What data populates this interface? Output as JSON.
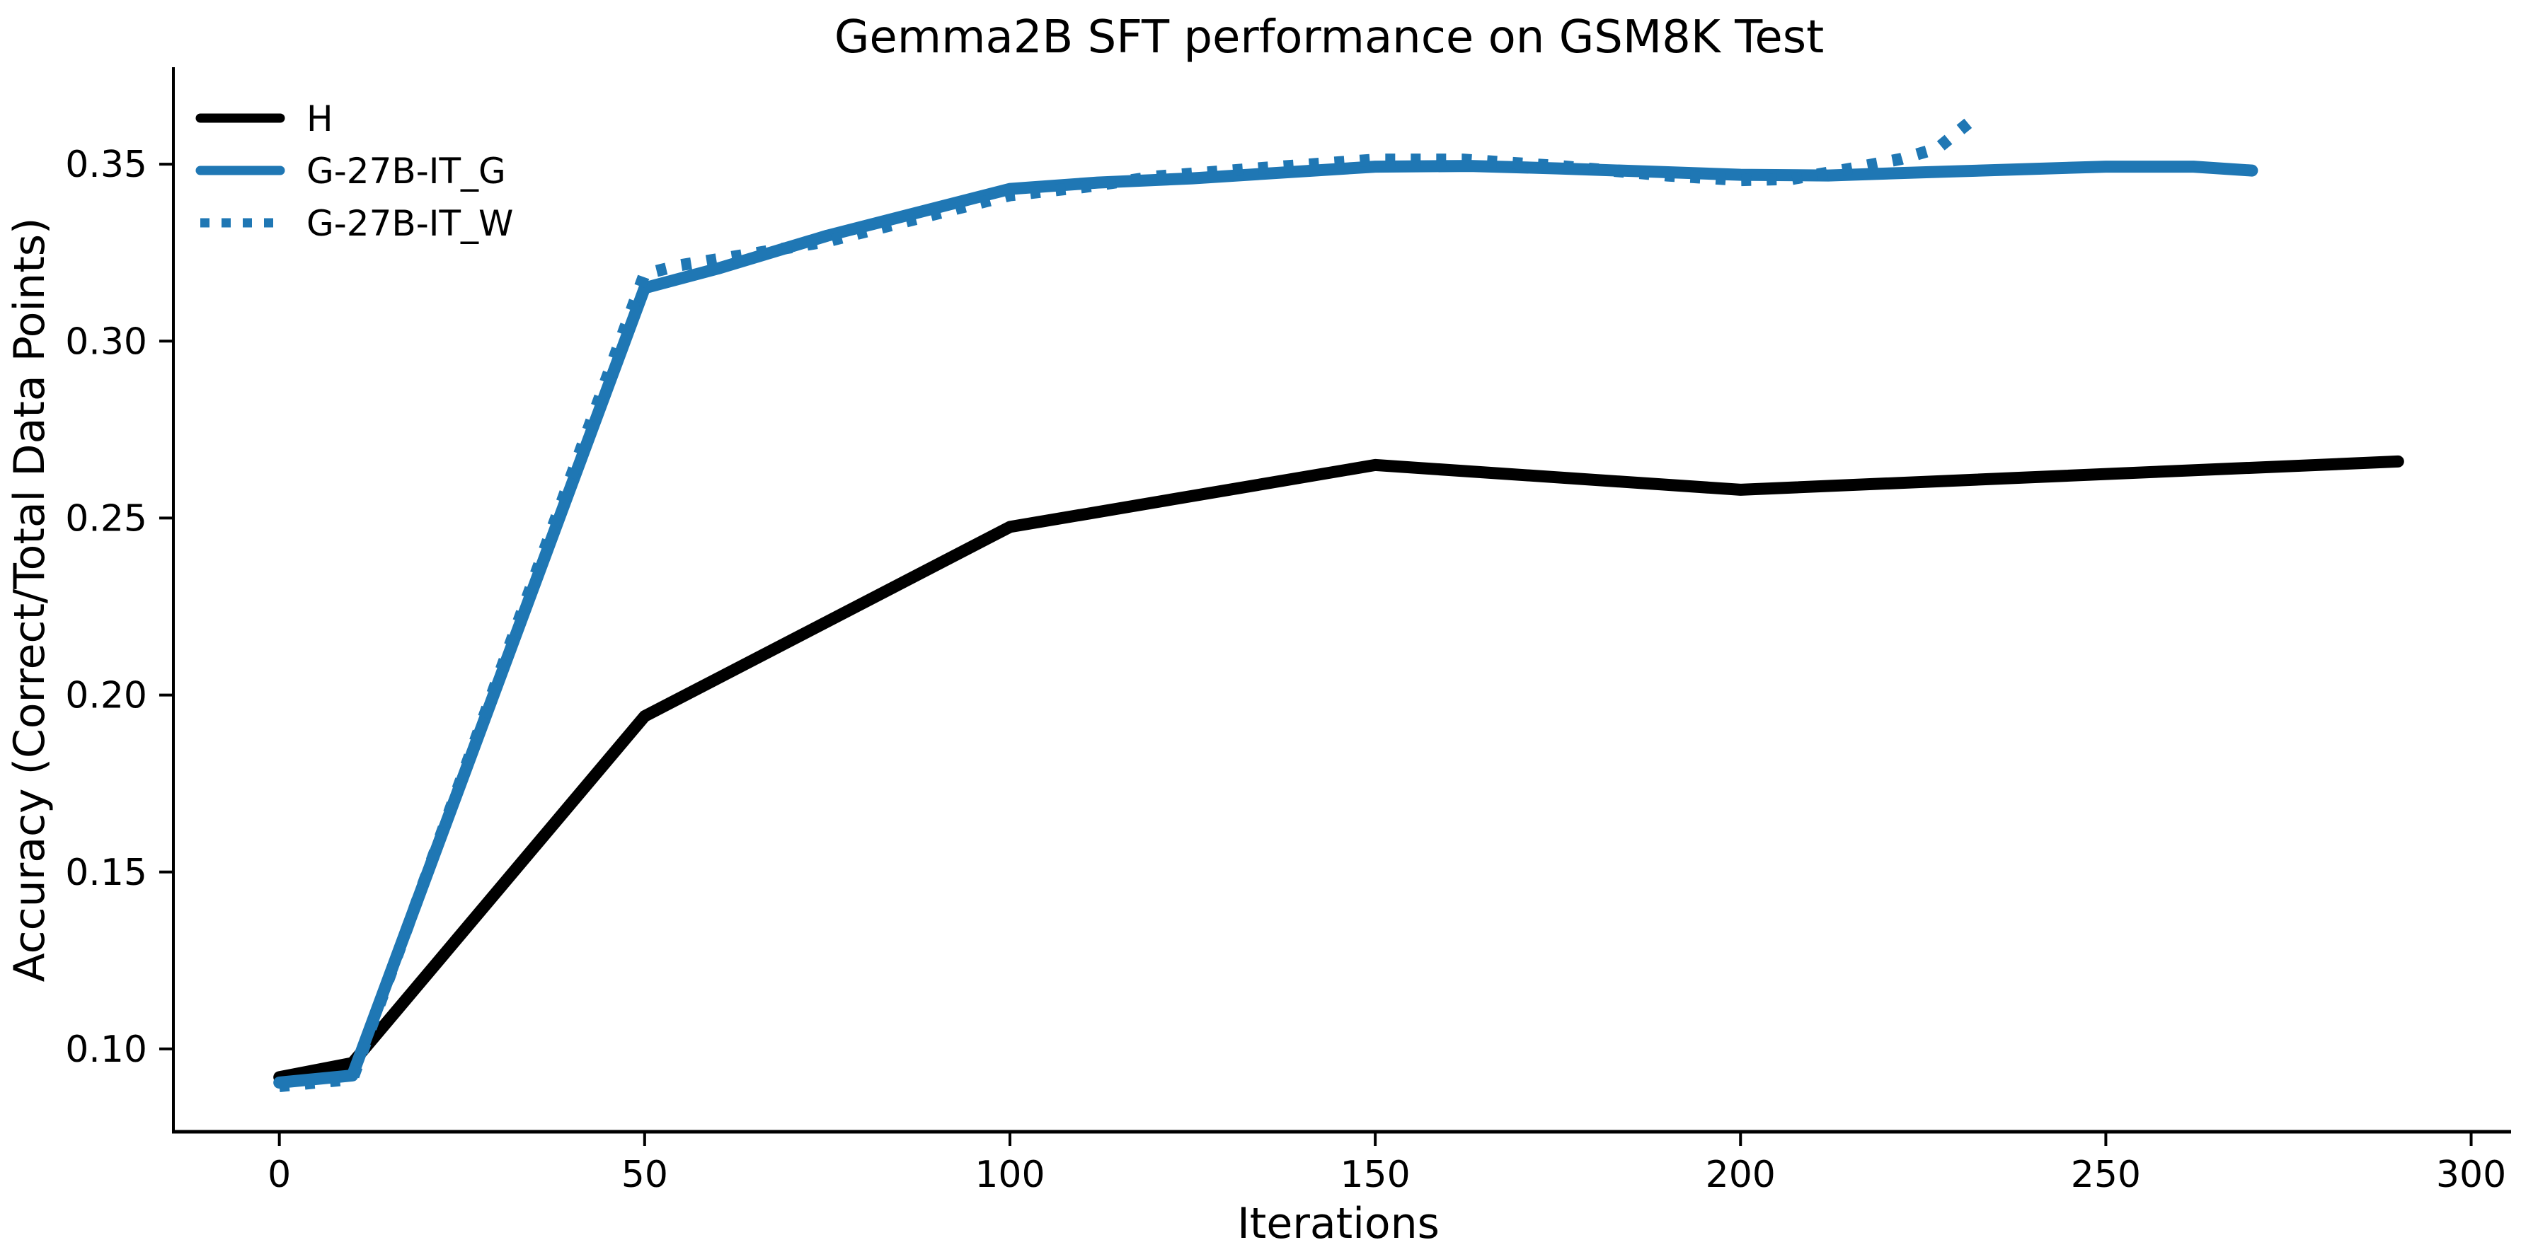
{
  "chart_data": {
    "type": "line",
    "title": "Gemma2B SFT performance on GSM8K Test",
    "xlabel": "Iterations",
    "ylabel": "Accuracy (Correct/Total Data Points)",
    "xlim": [
      -14.5,
      304.5
    ],
    "ylim": [
      0.0766,
      0.3774
    ],
    "grid": false,
    "legend_position": "upper left",
    "x_ticks": [
      0,
      50,
      100,
      150,
      200,
      250,
      300
    ],
    "x_tick_labels": [
      "0",
      "50",
      "100",
      "150",
      "200",
      "250",
      "300"
    ],
    "y_ticks": [
      0.1,
      0.15,
      0.2,
      0.25,
      0.3,
      0.35
    ],
    "y_tick_labels": [
      "0.10",
      "0.15",
      "0.20",
      "0.25",
      "0.30",
      "0.35"
    ],
    "colors": {
      "black_series": "#000000",
      "blue_series": "#1f77b4",
      "axis": "#000000",
      "text": "#000000",
      "background": "#ffffff"
    },
    "series": [
      {
        "name": "H",
        "style": "solid",
        "color": "#000000",
        "points": [
          [
            0,
            0.092
          ],
          [
            10,
            0.096
          ],
          [
            50,
            0.194
          ],
          [
            100,
            0.2475
          ],
          [
            150,
            0.265
          ],
          [
            200,
            0.258
          ],
          [
            290,
            0.266
          ]
        ]
      },
      {
        "name": "G-27B-IT_G",
        "style": "solid",
        "color": "#1f77b4",
        "points": [
          [
            0,
            0.0905
          ],
          [
            10,
            0.0925
          ],
          [
            50,
            0.315
          ],
          [
            60,
            0.3205
          ],
          [
            75,
            0.3298
          ],
          [
            100,
            0.343
          ],
          [
            112,
            0.3448
          ],
          [
            125,
            0.346
          ],
          [
            150,
            0.3493
          ],
          [
            163,
            0.3495
          ],
          [
            175,
            0.3488
          ],
          [
            200,
            0.347
          ],
          [
            212,
            0.3468
          ],
          [
            225,
            0.3477
          ],
          [
            250,
            0.3493
          ],
          [
            262,
            0.3493
          ],
          [
            270,
            0.3482
          ]
        ]
      },
      {
        "name": "G-27B-IT_W",
        "style": "dotted",
        "color": "#1f77b4",
        "points": [
          [
            0,
            0.0895
          ],
          [
            10,
            0.0915
          ],
          [
            50,
            0.319
          ],
          [
            55,
            0.3215
          ],
          [
            65,
            0.3248
          ],
          [
            75,
            0.3282
          ],
          [
            100,
            0.3412
          ],
          [
            110,
            0.3435
          ],
          [
            120,
            0.3465
          ],
          [
            135,
            0.349
          ],
          [
            150,
            0.3513
          ],
          [
            162,
            0.3513
          ],
          [
            175,
            0.3495
          ],
          [
            190,
            0.3468
          ],
          [
            200,
            0.3455
          ],
          [
            207,
            0.3458
          ],
          [
            215,
            0.3487
          ],
          [
            222,
            0.3515
          ],
          [
            227,
            0.3545
          ],
          [
            232,
            0.363
          ]
        ]
      }
    ],
    "legend": [
      {
        "label": "H"
      },
      {
        "label": "G-27B-IT_G"
      },
      {
        "label": "G-27B-IT_W"
      }
    ]
  }
}
